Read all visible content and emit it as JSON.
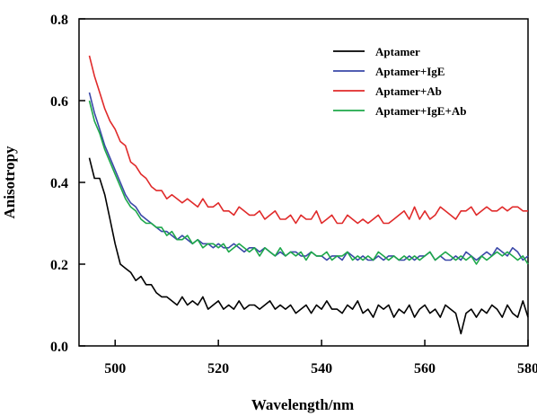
{
  "chart_data": {
    "type": "line",
    "title": "",
    "xlabel": "Wavelength/nm",
    "ylabel": "Anisotropy",
    "xlim": [
      493,
      580
    ],
    "ylim": [
      0.0,
      0.8
    ],
    "x_ticks": [
      500,
      520,
      540,
      560,
      580
    ],
    "y_ticks": [
      0.0,
      0.2,
      0.4,
      0.6,
      0.8
    ],
    "x_tick_labels": [
      "500",
      "520",
      "540",
      "560",
      "580"
    ],
    "y_tick_labels": [
      "0.0",
      "0.2",
      "0.4",
      "0.6",
      "0.8"
    ],
    "grid": false,
    "legend_position": "top-right",
    "x": [
      495,
      496,
      497,
      498,
      499,
      500,
      501,
      502,
      503,
      504,
      505,
      506,
      507,
      508,
      509,
      510,
      511,
      512,
      513,
      514,
      515,
      516,
      517,
      518,
      519,
      520,
      521,
      522,
      523,
      524,
      525,
      526,
      527,
      528,
      529,
      530,
      531,
      532,
      533,
      534,
      535,
      536,
      537,
      538,
      539,
      540,
      541,
      542,
      543,
      544,
      545,
      546,
      547,
      548,
      549,
      550,
      551,
      552,
      553,
      554,
      555,
      556,
      557,
      558,
      559,
      560,
      561,
      562,
      563,
      564,
      565,
      566,
      567,
      568,
      569,
      570,
      571,
      572,
      573,
      574,
      575,
      576,
      577,
      578,
      579,
      580
    ],
    "series": [
      {
        "name": "Aptamer",
        "color": "#000000",
        "values": [
          0.46,
          0.41,
          0.41,
          0.37,
          0.31,
          0.25,
          0.2,
          0.19,
          0.18,
          0.16,
          0.17,
          0.15,
          0.15,
          0.13,
          0.12,
          0.12,
          0.11,
          0.1,
          0.12,
          0.1,
          0.11,
          0.1,
          0.12,
          0.09,
          0.1,
          0.11,
          0.09,
          0.1,
          0.09,
          0.11,
          0.09,
          0.1,
          0.1,
          0.09,
          0.1,
          0.11,
          0.09,
          0.1,
          0.09,
          0.1,
          0.08,
          0.09,
          0.1,
          0.08,
          0.1,
          0.09,
          0.11,
          0.09,
          0.09,
          0.08,
          0.1,
          0.09,
          0.11,
          0.08,
          0.09,
          0.07,
          0.1,
          0.09,
          0.1,
          0.07,
          0.09,
          0.08,
          0.1,
          0.07,
          0.09,
          0.1,
          0.08,
          0.09,
          0.07,
          0.1,
          0.09,
          0.08,
          0.03,
          0.08,
          0.09,
          0.07,
          0.09,
          0.08,
          0.1,
          0.09,
          0.07,
          0.1,
          0.08,
          0.07,
          0.11,
          0.07
        ]
      },
      {
        "name": "Aptamer+IgE",
        "color": "#3a48a8",
        "values": [
          0.62,
          0.57,
          0.53,
          0.49,
          0.46,
          0.43,
          0.4,
          0.37,
          0.35,
          0.34,
          0.32,
          0.31,
          0.3,
          0.29,
          0.28,
          0.28,
          0.27,
          0.26,
          0.27,
          0.26,
          0.25,
          0.26,
          0.25,
          0.25,
          0.24,
          0.25,
          0.24,
          0.24,
          0.25,
          0.24,
          0.23,
          0.24,
          0.24,
          0.23,
          0.24,
          0.23,
          0.22,
          0.23,
          0.22,
          0.23,
          0.23,
          0.22,
          0.22,
          0.23,
          0.22,
          0.22,
          0.21,
          0.22,
          0.22,
          0.21,
          0.23,
          0.22,
          0.21,
          0.22,
          0.21,
          0.21,
          0.22,
          0.21,
          0.22,
          0.22,
          0.21,
          0.21,
          0.22,
          0.21,
          0.22,
          0.22,
          0.23,
          0.21,
          0.22,
          0.21,
          0.21,
          0.22,
          0.21,
          0.23,
          0.22,
          0.21,
          0.22,
          0.23,
          0.22,
          0.24,
          0.23,
          0.22,
          0.24,
          0.23,
          0.21,
          0.22
        ]
      },
      {
        "name": "Aptamer+Ab",
        "color": "#e02a2a",
        "values": [
          0.71,
          0.66,
          0.62,
          0.58,
          0.55,
          0.53,
          0.5,
          0.49,
          0.45,
          0.44,
          0.42,
          0.41,
          0.39,
          0.38,
          0.38,
          0.36,
          0.37,
          0.36,
          0.35,
          0.36,
          0.35,
          0.34,
          0.36,
          0.34,
          0.34,
          0.35,
          0.33,
          0.33,
          0.32,
          0.34,
          0.33,
          0.32,
          0.32,
          0.33,
          0.31,
          0.32,
          0.33,
          0.31,
          0.31,
          0.32,
          0.3,
          0.32,
          0.31,
          0.31,
          0.33,
          0.3,
          0.31,
          0.32,
          0.3,
          0.3,
          0.32,
          0.31,
          0.3,
          0.31,
          0.3,
          0.31,
          0.32,
          0.3,
          0.3,
          0.31,
          0.32,
          0.33,
          0.31,
          0.34,
          0.31,
          0.33,
          0.31,
          0.32,
          0.34,
          0.33,
          0.32,
          0.31,
          0.33,
          0.33,
          0.34,
          0.32,
          0.33,
          0.34,
          0.33,
          0.33,
          0.34,
          0.33,
          0.34,
          0.34,
          0.33,
          0.33
        ]
      },
      {
        "name": "Aptamer+IgE+Ab",
        "color": "#1ea84a",
        "values": [
          0.6,
          0.55,
          0.52,
          0.48,
          0.45,
          0.42,
          0.39,
          0.36,
          0.34,
          0.33,
          0.31,
          0.3,
          0.3,
          0.29,
          0.29,
          0.27,
          0.28,
          0.26,
          0.26,
          0.27,
          0.25,
          0.26,
          0.24,
          0.25,
          0.25,
          0.24,
          0.25,
          0.23,
          0.24,
          0.25,
          0.24,
          0.23,
          0.24,
          0.22,
          0.24,
          0.23,
          0.22,
          0.24,
          0.22,
          0.23,
          0.22,
          0.23,
          0.21,
          0.23,
          0.22,
          0.22,
          0.23,
          0.21,
          0.22,
          0.22,
          0.23,
          0.21,
          0.22,
          0.21,
          0.22,
          0.21,
          0.23,
          0.22,
          0.21,
          0.22,
          0.21,
          0.22,
          0.21,
          0.22,
          0.21,
          0.22,
          0.23,
          0.21,
          0.22,
          0.23,
          0.22,
          0.21,
          0.22,
          0.21,
          0.22,
          0.2,
          0.22,
          0.21,
          0.22,
          0.23,
          0.22,
          0.23,
          0.22,
          0.21,
          0.22,
          0.2
        ]
      }
    ]
  }
}
